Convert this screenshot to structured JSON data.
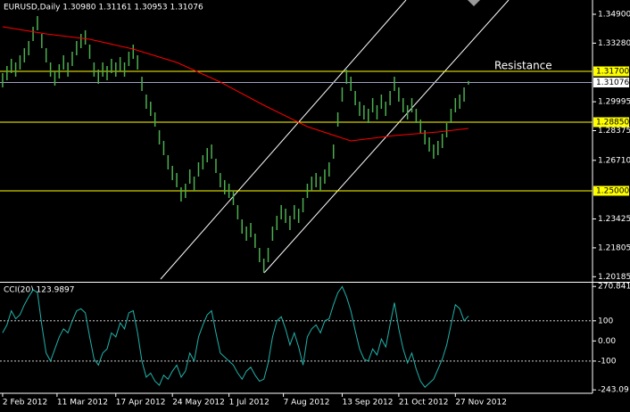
{
  "chart_data": [
    {
      "type": "ohlc",
      "title": "EURUSD,Daily  1.30980 1.31161 1.30953 1.31076",
      "color": "#4caf50",
      "high": [
        1.316,
        1.32,
        1.324,
        1.322,
        1.326,
        1.33,
        1.334,
        1.342,
        1.348,
        1.338,
        1.33,
        1.322,
        1.317,
        1.321,
        1.326,
        1.322,
        1.328,
        1.334,
        1.338,
        1.34,
        1.332,
        1.322,
        1.318,
        1.322,
        1.32,
        1.324,
        1.322,
        1.325,
        1.322,
        1.328,
        1.332,
        1.326,
        1.314,
        1.304,
        1.3,
        1.294,
        1.284,
        1.278,
        1.27,
        1.264,
        1.26,
        1.252,
        1.254,
        1.262,
        1.258,
        1.266,
        1.27,
        1.274,
        1.276,
        1.268,
        1.26,
        1.256,
        1.254,
        1.25,
        1.242,
        1.234,
        1.23,
        1.232,
        1.226,
        1.218,
        1.212,
        1.218,
        1.23,
        1.236,
        1.242,
        1.24,
        1.236,
        1.242,
        1.24,
        1.246,
        1.254,
        1.258,
        1.26,
        1.258,
        1.262,
        1.266,
        1.276,
        1.294,
        1.308,
        1.318,
        1.314,
        1.306,
        1.3,
        1.298,
        1.296,
        1.302,
        1.298,
        1.304,
        1.3,
        1.306,
        1.314,
        1.308,
        1.302,
        1.298,
        1.302,
        1.296,
        1.29,
        1.284,
        1.28,
        1.276,
        1.278,
        1.282,
        1.288,
        1.296,
        1.302,
        1.304,
        1.308,
        1.31161
      ],
      "low": [
        1.308,
        1.312,
        1.316,
        1.314,
        1.318,
        1.322,
        1.326,
        1.334,
        1.34,
        1.33,
        1.322,
        1.314,
        1.309,
        1.313,
        1.318,
        1.314,
        1.32,
        1.326,
        1.33,
        1.332,
        1.324,
        1.314,
        1.31,
        1.314,
        1.312,
        1.316,
        1.314,
        1.317,
        1.314,
        1.32,
        1.324,
        1.318,
        1.306,
        1.296,
        1.292,
        1.286,
        1.276,
        1.27,
        1.262,
        1.256,
        1.252,
        1.244,
        1.246,
        1.254,
        1.25,
        1.258,
        1.262,
        1.266,
        1.268,
        1.26,
        1.252,
        1.248,
        1.246,
        1.242,
        1.234,
        1.226,
        1.222,
        1.224,
        1.218,
        1.21,
        1.204,
        1.21,
        1.222,
        1.228,
        1.234,
        1.232,
        1.228,
        1.234,
        1.232,
        1.238,
        1.246,
        1.25,
        1.252,
        1.25,
        1.254,
        1.258,
        1.268,
        1.286,
        1.3,
        1.31,
        1.306,
        1.298,
        1.292,
        1.29,
        1.288,
        1.294,
        1.29,
        1.296,
        1.292,
        1.298,
        1.306,
        1.3,
        1.294,
        1.29,
        1.294,
        1.288,
        1.282,
        1.276,
        1.272,
        1.268,
        1.27,
        1.274,
        1.28,
        1.288,
        1.294,
        1.296,
        1.3,
        1.30953
      ],
      "ma": {
        "color": "#ff0000",
        "x": [
          0,
          10,
          20,
          30,
          40,
          50,
          60,
          70,
          80,
          90,
          100,
          107
        ],
        "values": [
          1.342,
          1.338,
          1.335,
          1.3295,
          1.322,
          1.311,
          1.298,
          1.286,
          1.278,
          1.281,
          1.283,
          1.285
        ]
      },
      "levels": [
        {
          "value": 1.317,
          "label": "1.31700"
        },
        {
          "value": 1.2885,
          "label": "1.28850"
        },
        {
          "value": 1.25,
          "label": "1.25000"
        }
      ],
      "level_color": "#ffff00",
      "last": {
        "value": 1.31076,
        "label": "1.31076"
      },
      "annotation": "Resistance",
      "xlim": [
        -0.6,
        135.5
      ],
      "ylim": [
        1.199,
        1.357
      ],
      "yticks": [
        {
          "value": 1.349,
          "label": "1.34900"
        },
        {
          "value": 1.3328,
          "label": "1.33280"
        },
        {
          "value": 1.29995,
          "label": "1.29995"
        },
        {
          "value": 1.28375,
          "label": "1.28375"
        },
        {
          "value": 1.2671,
          "label": "1.26710"
        },
        {
          "value": 1.23425,
          "label": "1.23425"
        },
        {
          "value": 1.21805,
          "label": "1.21805"
        },
        {
          "value": 1.20185,
          "label": "1.20185"
        }
      ]
    },
    {
      "type": "line",
      "title": "CCI(20) 123.9897",
      "color": "#20b2aa",
      "values": [
        40,
        80,
        150,
        110,
        130,
        180,
        220,
        255,
        240,
        80,
        -60,
        -100,
        -40,
        20,
        60,
        40,
        100,
        150,
        160,
        140,
        20,
        -90,
        -120,
        -60,
        -40,
        40,
        20,
        90,
        60,
        140,
        150,
        40,
        -100,
        -180,
        -160,
        -200,
        -220,
        -170,
        -190,
        -150,
        -120,
        -180,
        -150,
        -60,
        -100,
        20,
        80,
        130,
        150,
        40,
        -60,
        -80,
        -100,
        -120,
        -160,
        -190,
        -150,
        -130,
        -170,
        -200,
        -190,
        -110,
        20,
        100,
        120,
        60,
        -20,
        40,
        -30,
        -120,
        20,
        60,
        80,
        40,
        100,
        110,
        180,
        240,
        270,
        220,
        150,
        50,
        -40,
        -90,
        -100,
        -40,
        -70,
        10,
        -30,
        80,
        190,
        60,
        -40,
        -110,
        -60,
        -140,
        -200,
        -230,
        -210,
        -190,
        -140,
        -90,
        -20,
        80,
        180,
        160,
        100,
        123.9897
      ],
      "xlim": [
        -0.6,
        135.5
      ],
      "ylim": [
        -260,
        285
      ],
      "yticks": [
        270.8412,
        100,
        {
          "value": 0,
          "label": "0.00"
        },
        -100,
        -243.09
      ],
      "dotted_levels": [
        100,
        -100
      ],
      "xticks": [
        {
          "value": 0,
          "label": "2 Feb 2012"
        },
        {
          "value": 12.5,
          "label": "11 Mar 2012"
        },
        {
          "value": 26,
          "label": "17 Apr 2012"
        },
        {
          "value": 39,
          "label": "24 May 2012"
        },
        {
          "value": 52,
          "label": "1 Jul 2012"
        },
        {
          "value": 64.5,
          "label": "7 Aug 2012"
        },
        {
          "value": 78,
          "label": "13 Sep 2012"
        },
        {
          "value": 91,
          "label": "21 Oct 2012"
        },
        {
          "value": 104,
          "label": "27 Nov 2012"
        }
      ]
    }
  ]
}
